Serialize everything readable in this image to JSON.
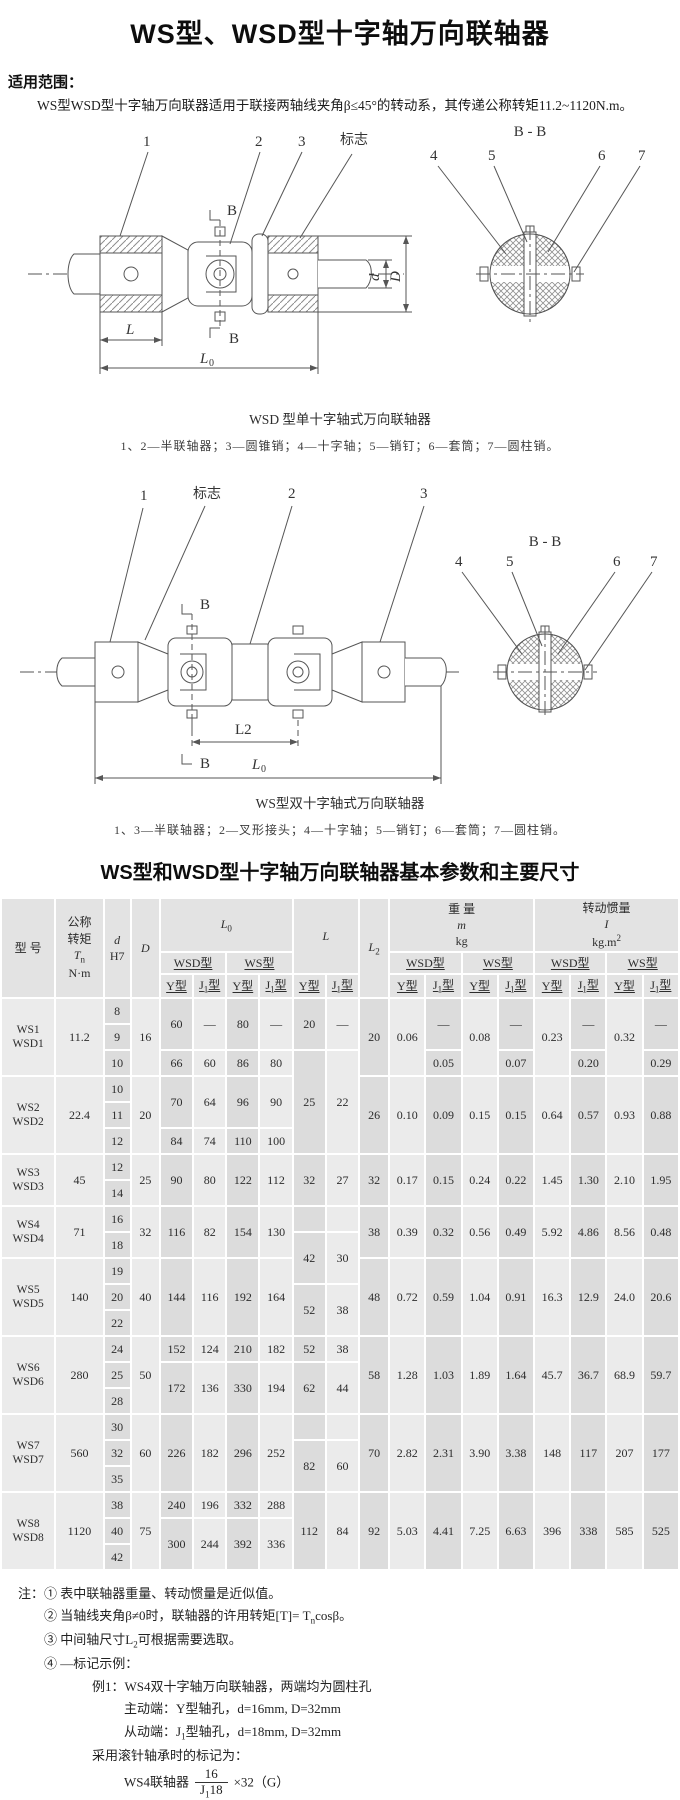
{
  "page": {
    "title": "WS型、WSD型十字轴万向联轴器",
    "scope_label": "适用范围：",
    "scope_text": "WS型WSD型十字轴万向联器适用于联接两轴线夹角β≤45°的转动系，其传递公称转矩11.2~1120N.m。"
  },
  "figure1": {
    "section_title": "B - B",
    "labels": {
      "c1": "1",
      "c2": "2",
      "c3": "3",
      "mark": "标志",
      "c4": "4",
      "c5": "5",
      "c6": "6",
      "c7": "7",
      "b_top": "B",
      "b_bottom": "B",
      "dim_L": "L",
      "dim_L0_base": "L",
      "dim_L0_sub": "0",
      "dim_d": "d",
      "dim_D": "D"
    },
    "caption": "WSD 型单十字轴式万向联轴器",
    "legend": "1、2—半联轴器；3—圆锥销；4—十字轴；5—销钉；6—套筒；7—圆柱销。"
  },
  "figure2": {
    "section_title": "B - B",
    "labels": {
      "c1": "1",
      "mark": "标志",
      "c2": "2",
      "c3": "3",
      "c4": "4",
      "c5": "5",
      "c6": "6",
      "c7": "7",
      "b_top": "B",
      "b_bottom": "B",
      "dim_L2": "L2",
      "dim_L0_base": "L",
      "dim_L0_sub": "0"
    },
    "caption": "WS型双十字轴式万向联轴器",
    "legend": "1、3—半联轴器；2—叉形接头；4—十字轴；5—销钉；6—套筒；7—圆柱销。"
  },
  "table": {
    "title": "WS型和WSD型十字轴万向联轴器基本参数和主要尺寸",
    "header": {
      "model": "型  号",
      "torque_l1": "公称",
      "torque_l2": "转矩",
      "torque_T": "T",
      "torque_T_sub": "n",
      "torque_unit": "N·m",
      "d": "d",
      "d_fit": "H7",
      "D": "D",
      "L0_base": "L",
      "L0_sub": "0",
      "L": "L",
      "L2_base": "L",
      "L2_sub": "2",
      "wsd": "WSD型",
      "ws": "WS型",
      "y": "Y型",
      "j_base": "J",
      "j_sub": "1",
      "j_suf": "型",
      "weight_l1": "重  量",
      "weight_m": "m",
      "weight_unit": "kg",
      "inertia_l1": "转动惯量",
      "inertia_I": "I",
      "inertia_unit_base": "kg.m",
      "inertia_unit_sup": "2"
    },
    "rows": [
      [
        [
          "WS1\nWSD1",
          3
        ],
        [
          "11.2",
          3
        ],
        [
          "8",
          1
        ],
        [
          "16",
          3
        ],
        [
          "60",
          2
        ],
        [
          "—",
          2
        ],
        [
          "80",
          2
        ],
        [
          "—",
          2
        ],
        [
          "20",
          2
        ],
        [
          "—",
          2
        ],
        [
          "20",
          3
        ],
        [
          "0.06",
          3
        ],
        [
          "—",
          2
        ],
        [
          "0.08",
          3
        ],
        [
          "—",
          2
        ],
        [
          "0.23",
          3
        ],
        [
          "—",
          2
        ],
        [
          "0.32",
          3
        ],
        [
          "—",
          2
        ]
      ],
      [
        [
          "9",
          1
        ]
      ],
      [
        [
          "10",
          1
        ],
        [
          "66",
          1
        ],
        [
          "60",
          1
        ],
        [
          "86",
          1
        ],
        [
          "80",
          1
        ],
        [
          "25",
          4
        ],
        [
          "22",
          4
        ],
        [
          "0.05",
          1
        ],
        [
          "0.07",
          1
        ],
        [
          "0.20",
          1
        ],
        [
          "0.29",
          1
        ]
      ],
      [
        [
          "WS2\nWSD2",
          3
        ],
        [
          "22.4",
          3
        ],
        [
          "10",
          1
        ],
        [
          "20",
          3
        ],
        [
          "70",
          2
        ],
        [
          "64",
          2
        ],
        [
          "96",
          2
        ],
        [
          "90",
          2
        ],
        [
          "26",
          3
        ],
        [
          "0.10",
          3
        ],
        [
          "0.09",
          3
        ],
        [
          "0.15",
          3
        ],
        [
          "0.15",
          3
        ],
        [
          "0.64",
          3
        ],
        [
          "0.57",
          3
        ],
        [
          "0.93",
          3
        ],
        [
          "0.88",
          3
        ]
      ],
      [
        [
          "11",
          1
        ]
      ],
      [
        [
          "12",
          1
        ],
        [
          "84",
          1
        ],
        [
          "74",
          1
        ],
        [
          "110",
          1
        ],
        [
          "100",
          1
        ]
      ],
      [
        [
          "WS3\nWSD3",
          2
        ],
        [
          "45",
          2
        ],
        [
          "12",
          1
        ],
        [
          "25",
          2
        ],
        [
          "90",
          2
        ],
        [
          "80",
          2
        ],
        [
          "122",
          2
        ],
        [
          "112",
          2
        ],
        [
          "32",
          2
        ],
        [
          "27",
          2
        ],
        [
          "32",
          2
        ],
        [
          "0.17",
          2
        ],
        [
          "0.15",
          2
        ],
        [
          "0.24",
          2
        ],
        [
          "0.22",
          2
        ],
        [
          "1.45",
          2
        ],
        [
          "1.30",
          2
        ],
        [
          "2.10",
          2
        ],
        [
          "1.95",
          2
        ]
      ],
      [
        [
          "14",
          1
        ]
      ],
      [
        [
          "WS4\nWSD4",
          2
        ],
        [
          "71",
          2
        ],
        [
          "16",
          1
        ],
        [
          "32",
          2
        ],
        [
          "116",
          2
        ],
        [
          "82",
          2
        ],
        [
          "154",
          2
        ],
        [
          "130",
          2
        ],
        [
          "",
          1
        ],
        [
          "",
          1
        ],
        [
          "38",
          2
        ],
        [
          "0.39",
          2
        ],
        [
          "0.32",
          2
        ],
        [
          "0.56",
          2
        ],
        [
          "0.49",
          2
        ],
        [
          "5.92",
          2
        ],
        [
          "4.86",
          2
        ],
        [
          "8.56",
          2
        ],
        [
          "0.48",
          2
        ]
      ],
      [
        [
          "18",
          1
        ],
        [
          "42",
          2
        ],
        [
          "30",
          2
        ]
      ],
      [
        [
          "WS5\nWSD5",
          3
        ],
        [
          "140",
          3
        ],
        [
          "19",
          1
        ],
        [
          "40",
          3
        ],
        [
          "144",
          3
        ],
        [
          "116",
          3
        ],
        [
          "192",
          3
        ],
        [
          "164",
          3
        ],
        [
          "48",
          3
        ],
        [
          "0.72",
          3
        ],
        [
          "0.59",
          3
        ],
        [
          "1.04",
          3
        ],
        [
          "0.91",
          3
        ],
        [
          "16.3",
          3
        ],
        [
          "12.9",
          3
        ],
        [
          "24.0",
          3
        ],
        [
          "20.6",
          3
        ]
      ],
      [
        [
          "20",
          1
        ],
        [
          "52",
          2
        ],
        [
          "38",
          2
        ]
      ],
      [
        [
          "22",
          1
        ]
      ],
      [
        [
          "WS6\nWSD6",
          3
        ],
        [
          "280",
          3
        ],
        [
          "24",
          1
        ],
        [
          "50",
          3
        ],
        [
          "152",
          1
        ],
        [
          "124",
          1
        ],
        [
          "210",
          1
        ],
        [
          "182",
          1
        ],
        [
          "52",
          1
        ],
        [
          "38",
          1
        ],
        [
          "58",
          3
        ],
        [
          "1.28",
          3
        ],
        [
          "1.03",
          3
        ],
        [
          "1.89",
          3
        ],
        [
          "1.64",
          3
        ],
        [
          "45.7",
          3
        ],
        [
          "36.7",
          3
        ],
        [
          "68.9",
          3
        ],
        [
          "59.7",
          3
        ]
      ],
      [
        [
          "25",
          1
        ],
        [
          "172",
          2
        ],
        [
          "136",
          2
        ],
        [
          "330",
          2
        ],
        [
          "194",
          2
        ],
        [
          "62",
          2
        ],
        [
          "44",
          2
        ]
      ],
      [
        [
          "28",
          1
        ]
      ],
      [
        [
          "WS7\nWSD7",
          3
        ],
        [
          "560",
          3
        ],
        [
          "30",
          1
        ],
        [
          "60",
          3
        ],
        [
          "226",
          3
        ],
        [
          "182",
          3
        ],
        [
          "296",
          3
        ],
        [
          "252",
          3
        ],
        [
          "",
          1
        ],
        [
          "",
          1
        ],
        [
          "70",
          3
        ],
        [
          "2.82",
          3
        ],
        [
          "2.31",
          3
        ],
        [
          "3.90",
          3
        ],
        [
          "3.38",
          3
        ],
        [
          "148",
          3
        ],
        [
          "117",
          3
        ],
        [
          "207",
          3
        ],
        [
          "177",
          3
        ]
      ],
      [
        [
          "32",
          1
        ],
        [
          "82",
          2
        ],
        [
          "60",
          2
        ]
      ],
      [
        [
          "35",
          1
        ]
      ],
      [
        [
          "WS8\nWSD8",
          3
        ],
        [
          "1120",
          3
        ],
        [
          "38",
          1
        ],
        [
          "75",
          3
        ],
        [
          "240",
          1
        ],
        [
          "196",
          1
        ],
        [
          "332",
          1
        ],
        [
          "288",
          1
        ],
        [
          "112",
          3
        ],
        [
          "84",
          3
        ],
        [
          "92",
          3
        ],
        [
          "5.03",
          3
        ],
        [
          "4.41",
          3
        ],
        [
          "7.25",
          3
        ],
        [
          "6.63",
          3
        ],
        [
          "396",
          3
        ],
        [
          "338",
          3
        ],
        [
          "585",
          3
        ],
        [
          "525",
          3
        ]
      ],
      [
        [
          "40",
          1
        ],
        [
          "300",
          2
        ],
        [
          "244",
          2
        ],
        [
          "392",
          2
        ],
        [
          "336",
          2
        ]
      ],
      [
        [
          "42",
          1
        ]
      ]
    ]
  },
  "notes": {
    "label": "注：",
    "n1": "① 表中联轴器重量、转动惯量是近似值。",
    "n2_pre": "② 当轴线夹角β≠0时，联轴器的许用转矩[T]= T",
    "n2_sub": "n",
    "n2_post": "cosβ。",
    "n3_pre": "③ 中间轴尺寸L",
    "n3_sub": "2",
    "n3_post": "可根据需要选取。",
    "n4": "④ —标记示例：",
    "ex1": "例1：WS4双十字轴万向联轴器，两端均为圆柱孔",
    "ex2": "主动端：Y型轴孔，d=16mm, D=32mm",
    "ex3_pre": "从动端：J",
    "ex3_sub": "1",
    "ex3_post": "型轴孔，d=18mm, D=32mm",
    "ex4": "采用滚针轴承时的标记为：",
    "mark_prefix": "WS4联轴器",
    "mark_num": "16",
    "mark_den_base": "J",
    "mark_den_sub": "1",
    "mark_den_rest": "18",
    "mark_suffix": "×32（G）"
  }
}
